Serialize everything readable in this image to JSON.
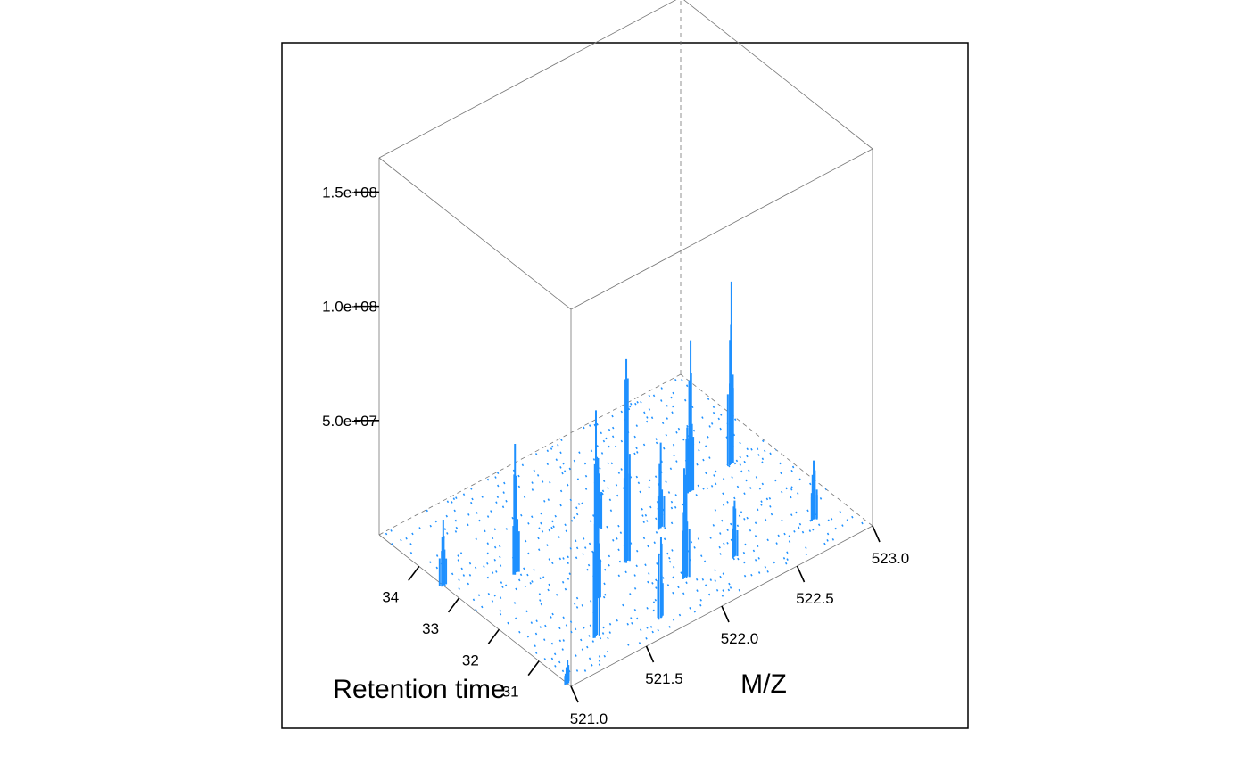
{
  "chart_data": {
    "type": "3d-wireframe",
    "xlabel": "M/Z",
    "ylabel": "Retention time",
    "zlabel": "",
    "xlim": [
      521.0,
      523.0
    ],
    "ylim": [
      30.2,
      35.0
    ],
    "zlim": [
      0,
      165000000
    ],
    "x_tick_labels": [
      "521.0",
      "521.5",
      "522.0",
      "522.5",
      "523.0"
    ],
    "y_tick_labels": [
      "31",
      "32",
      "33",
      "34"
    ],
    "z_tick_labels": [
      "5.0e+07",
      "1.0e+08",
      "1.5e+08"
    ],
    "color": "#1E90FF",
    "box": true,
    "peaks": [
      {
        "mz": 521.0,
        "rt": 30.3,
        "intensity": 12000000
      },
      {
        "mz": 521.0,
        "rt": 33.4,
        "intensity": 35000000
      },
      {
        "mz": 521.35,
        "rt": 30.9,
        "intensity": 125000000
      },
      {
        "mz": 521.35,
        "rt": 32.9,
        "intensity": 60000000
      },
      {
        "mz": 521.55,
        "rt": 31.6,
        "intensity": 40000000
      },
      {
        "mz": 521.7,
        "rt": 30.6,
        "intensity": 42000000
      },
      {
        "mz": 521.85,
        "rt": 32.0,
        "intensity": 112000000
      },
      {
        "mz": 521.9,
        "rt": 32.9,
        "intensity": 40000000
      },
      {
        "mz": 522.0,
        "rt": 31.1,
        "intensity": 62000000
      },
      {
        "mz": 522.15,
        "rt": 32.3,
        "intensity": 38000000
      },
      {
        "mz": 522.3,
        "rt": 31.0,
        "intensity": 28000000
      },
      {
        "mz": 522.45,
        "rt": 32.7,
        "intensity": 75000000
      },
      {
        "mz": 522.75,
        "rt": 32.8,
        "intensity": 90000000
      },
      {
        "mz": 522.8,
        "rt": 30.9,
        "intensity": 32000000
      }
    ]
  }
}
